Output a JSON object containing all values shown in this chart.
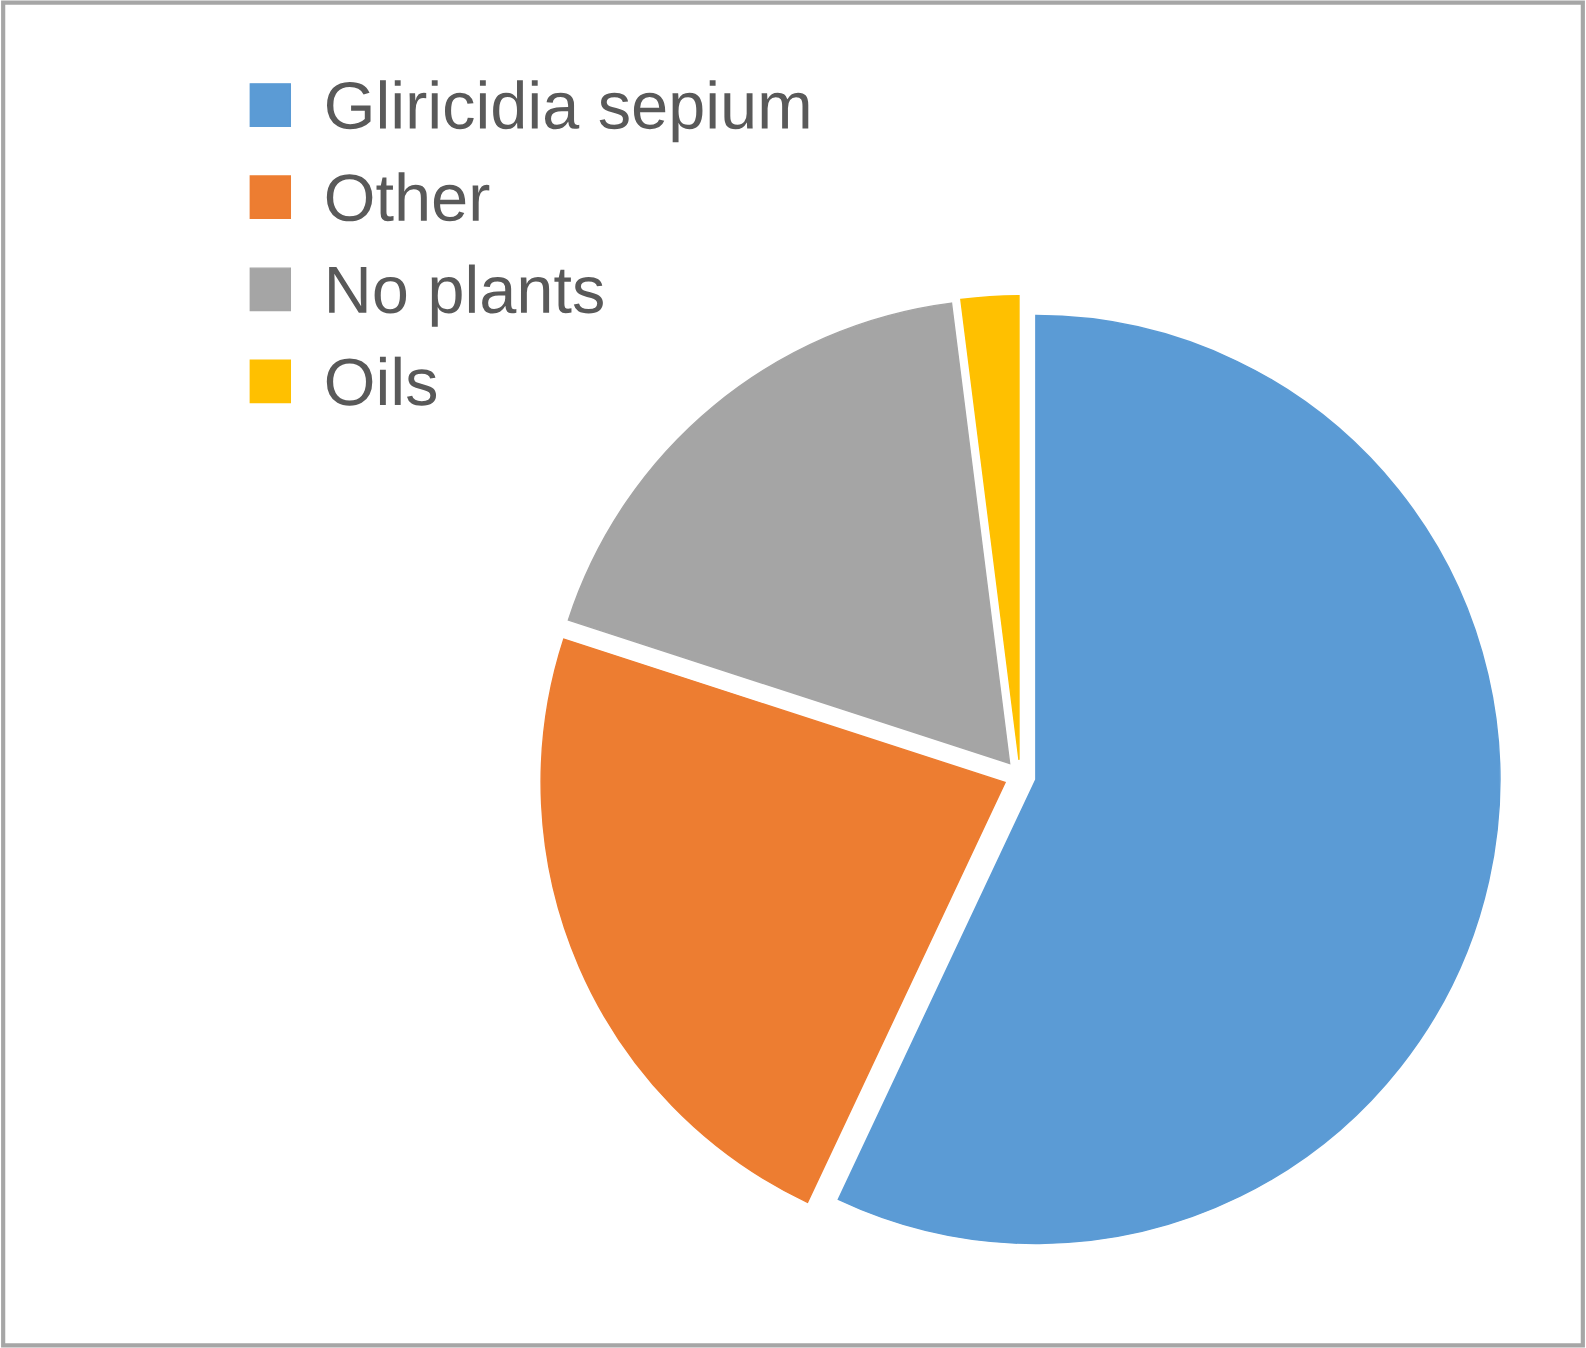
{
  "chart_data": {
    "type": "pie",
    "categories": [
      "Gliricidia sepium",
      "Other",
      "No plants",
      "Oils"
    ],
    "values": [
      57,
      23,
      18,
      2
    ],
    "colors": [
      "#5b9bd5",
      "#ed7d31",
      "#a5a5a5",
      "#ffc000"
    ],
    "legend": "top left"
  }
}
